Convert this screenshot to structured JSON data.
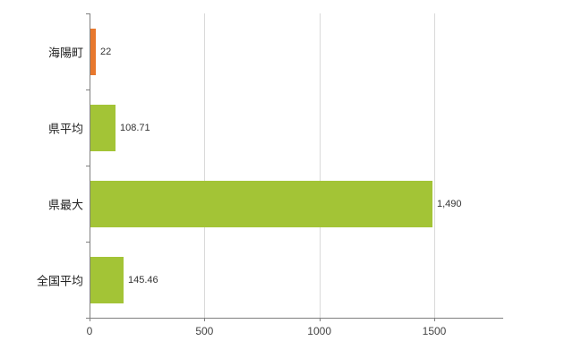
{
  "chart_data": {
    "type": "bar",
    "orientation": "horizontal",
    "title": "",
    "categories": [
      "海陽町",
      "県平均",
      "県最大",
      "全国平均"
    ],
    "values": [
      22,
      108.71,
      1490,
      145.46
    ],
    "value_labels": [
      "22",
      "108.71",
      "1,490",
      "145.46"
    ],
    "bar_colors": [
      "#e8782d",
      "#a3c436",
      "#a3c436",
      "#a3c436"
    ],
    "x_ticks": [
      0,
      500,
      1000,
      1500
    ],
    "x_tick_labels": [
      "0",
      "500",
      "1000",
      "1500"
    ],
    "xlim": [
      0,
      1800
    ],
    "grid": true,
    "legend": false,
    "background": "#ffffff",
    "gridline_color": "#d9d9d9",
    "axis_color": "#808080"
  }
}
